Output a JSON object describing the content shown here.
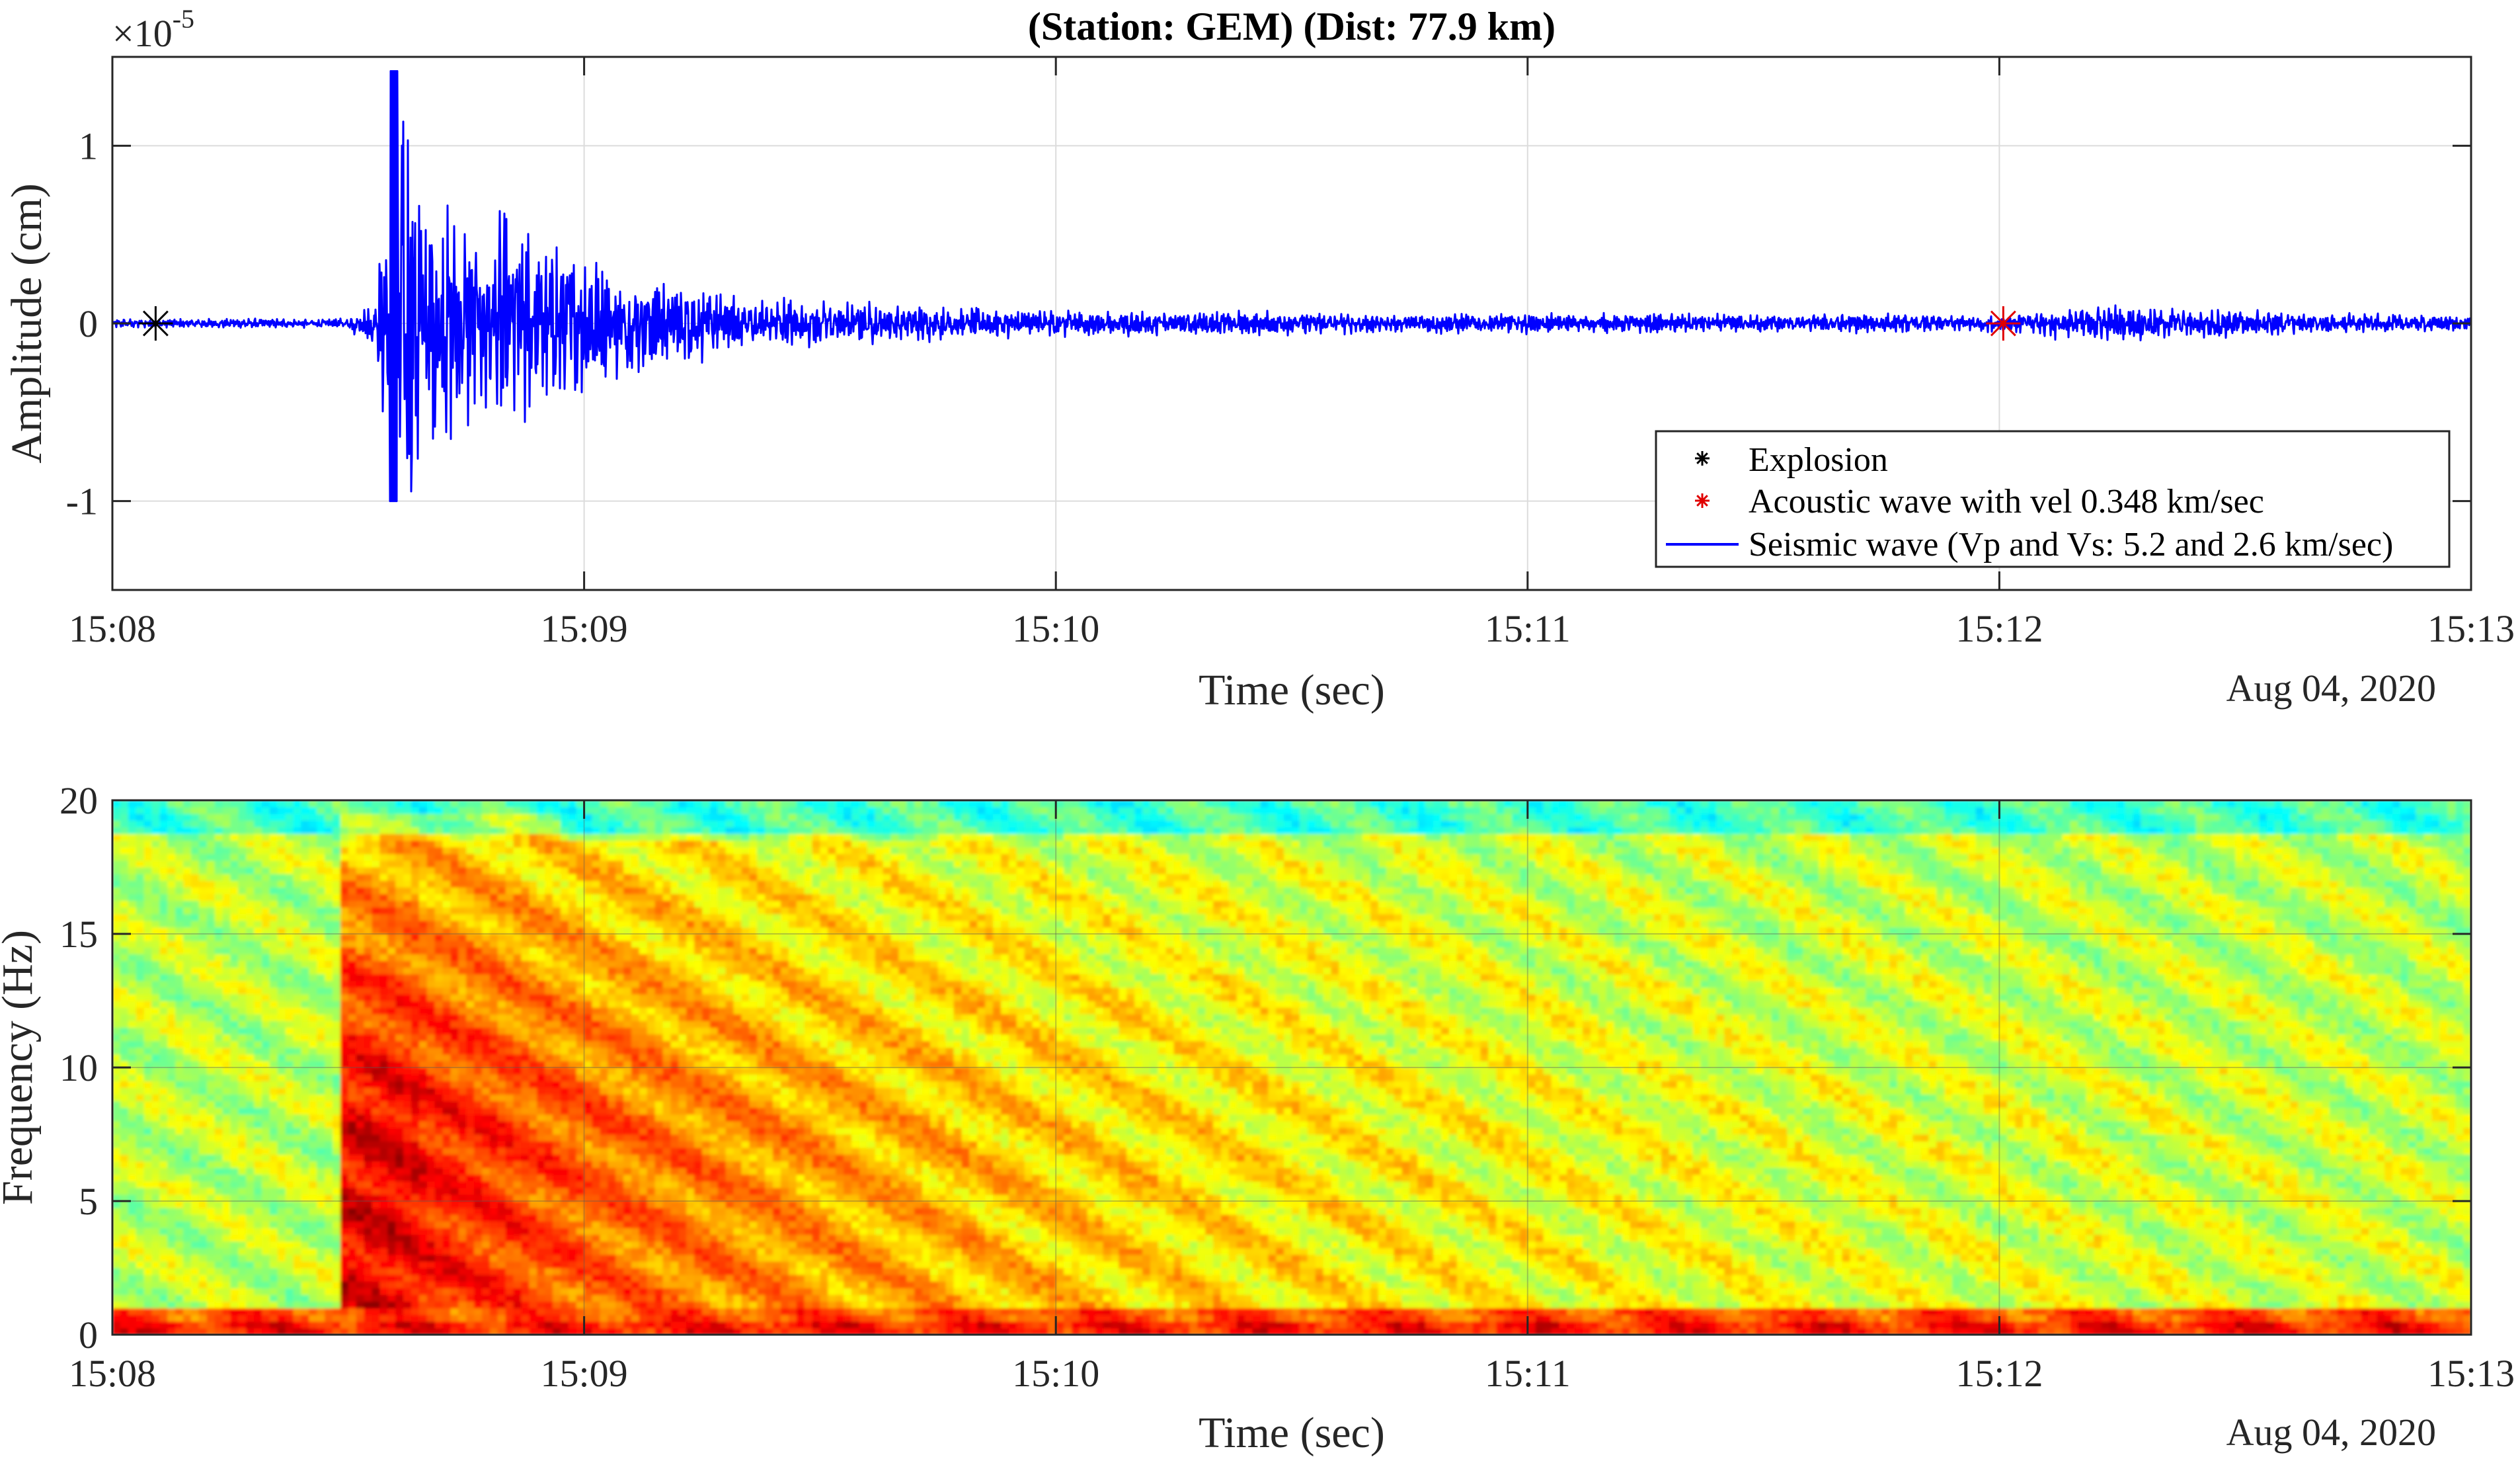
{
  "title": "(Station: GEM) (Dist: 77.9 km)",
  "chart_data": [
    {
      "type": "line",
      "title": "(Station: GEM) (Dist: 77.9 km)",
      "xlabel": "Time (sec)",
      "ylabel": "Amplitude (cm)",
      "y_exponent_label": "×10",
      "y_exponent": "-5",
      "date_label": "Aug 04, 2020",
      "x_ticks": [
        "15:08",
        "15:09",
        "15:10",
        "15:11",
        "15:12",
        "15:13"
      ],
      "y_ticks": [
        "-1",
        "0",
        "1"
      ],
      "xlim": [
        "15:08:00",
        "15:13:00"
      ],
      "ylim": [
        -1.5,
        1.5
      ],
      "grid": true,
      "legend_position": "bottom-right",
      "legend": [
        {
          "label": "Explosion",
          "marker": "*",
          "color": "#000000"
        },
        {
          "label": "Acoustic wave with vel 0.348 km/sec",
          "marker": "*",
          "color": "#e00000"
        },
        {
          "label": "Seismic wave (Vp and Vs: 5.2 and 2.6 km/sec)",
          "marker": "line",
          "color": "#0000ff"
        }
      ],
      "series": [
        {
          "name": "Seismic wave (Vp and Vs: 5.2 and 2.6 km/sec)",
          "color": "#0000ff",
          "envelope": {
            "t_sec": [
              0,
              30,
              33.5,
              35,
              36,
              38,
              40,
              45,
              50,
              55,
              60,
              70,
              80,
              90,
              100,
              120,
              150,
              200,
              240,
              250,
              300
            ],
            "amp": [
              0.02,
              0.02,
              0.15,
              0.55,
              1.4,
              0.8,
              0.6,
              0.45,
              0.5,
              0.4,
              0.3,
              0.2,
              0.12,
              0.1,
              0.08,
              0.06,
              0.05,
              0.04,
              0.04,
              0.08,
              0.03
            ]
          }
        }
      ],
      "markers": [
        {
          "name": "Explosion",
          "time": "15:08:05.5",
          "value": 0,
          "color": "#000000"
        },
        {
          "name": "Acoustic wave with vel 0.348 km/sec",
          "time": "15:12:00.5",
          "value": 0,
          "color": "#e00000"
        }
      ]
    },
    {
      "type": "heatmap",
      "xlabel": "Time (sec)",
      "ylabel": "Frequency (Hz)",
      "date_label": "Aug 04, 2020",
      "x_ticks": [
        "15:08",
        "15:09",
        "15:10",
        "15:11",
        "15:12",
        "15:13"
      ],
      "y_ticks": [
        "0",
        "5",
        "10",
        "15",
        "20"
      ],
      "xlim": [
        "15:08:00",
        "15:13:00"
      ],
      "ylim": [
        0,
        20
      ],
      "grid": true,
      "colormap": "jet",
      "onset_time_sec": 29,
      "active_band_hz": [
        1,
        18.5
      ]
    }
  ]
}
